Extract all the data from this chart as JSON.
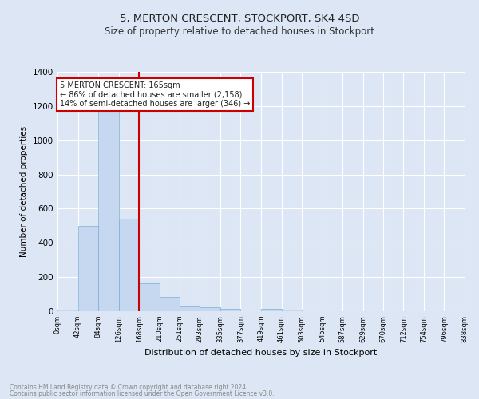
{
  "title": "5, MERTON CRESCENT, STOCKPORT, SK4 4SD",
  "subtitle": "Size of property relative to detached houses in Stockport",
  "xlabel": "Distribution of detached houses by size in Stockport",
  "ylabel": "Number of detached properties",
  "footnote1": "Contains HM Land Registry data © Crown copyright and database right 2024.",
  "footnote2": "Contains public sector information licensed under the Open Government Licence v3.0.",
  "bar_edges": [
    0,
    42,
    84,
    126,
    168,
    210,
    251,
    293,
    335,
    377,
    419,
    461,
    503,
    545,
    587,
    629,
    670,
    712,
    754,
    796,
    838
  ],
  "bar_heights": [
    10,
    500,
    1220,
    540,
    165,
    85,
    30,
    22,
    16,
    0,
    15,
    10,
    0,
    0,
    0,
    0,
    0,
    0,
    0,
    0
  ],
  "bar_color": "#c5d8ef",
  "bar_edgecolor": "#7aafd4",
  "vline_x": 168,
  "vline_color": "#cc0000",
  "ylim": [
    0,
    1400
  ],
  "yticks": [
    0,
    200,
    400,
    600,
    800,
    1000,
    1200,
    1400
  ],
  "bg_color": "#dce6f5",
  "fig_bg_color": "#dce6f5",
  "grid_color": "#ffffff",
  "annotation_title": "5 MERTON CRESCENT: 165sqm",
  "annotation_line1": "← 86% of detached houses are smaller (2,158)",
  "annotation_line2": "14% of semi-detached houses are larger (346) →",
  "annotation_box_color": "#ffffff",
  "annotation_box_edgecolor": "#cc0000",
  "tick_labels": [
    "0sqm",
    "42sqm",
    "84sqm",
    "126sqm",
    "168sqm",
    "210sqm",
    "251sqm",
    "293sqm",
    "335sqm",
    "377sqm",
    "419sqm",
    "461sqm",
    "503sqm",
    "545sqm",
    "587sqm",
    "629sqm",
    "670sqm",
    "712sqm",
    "754sqm",
    "796sqm",
    "838sqm"
  ]
}
